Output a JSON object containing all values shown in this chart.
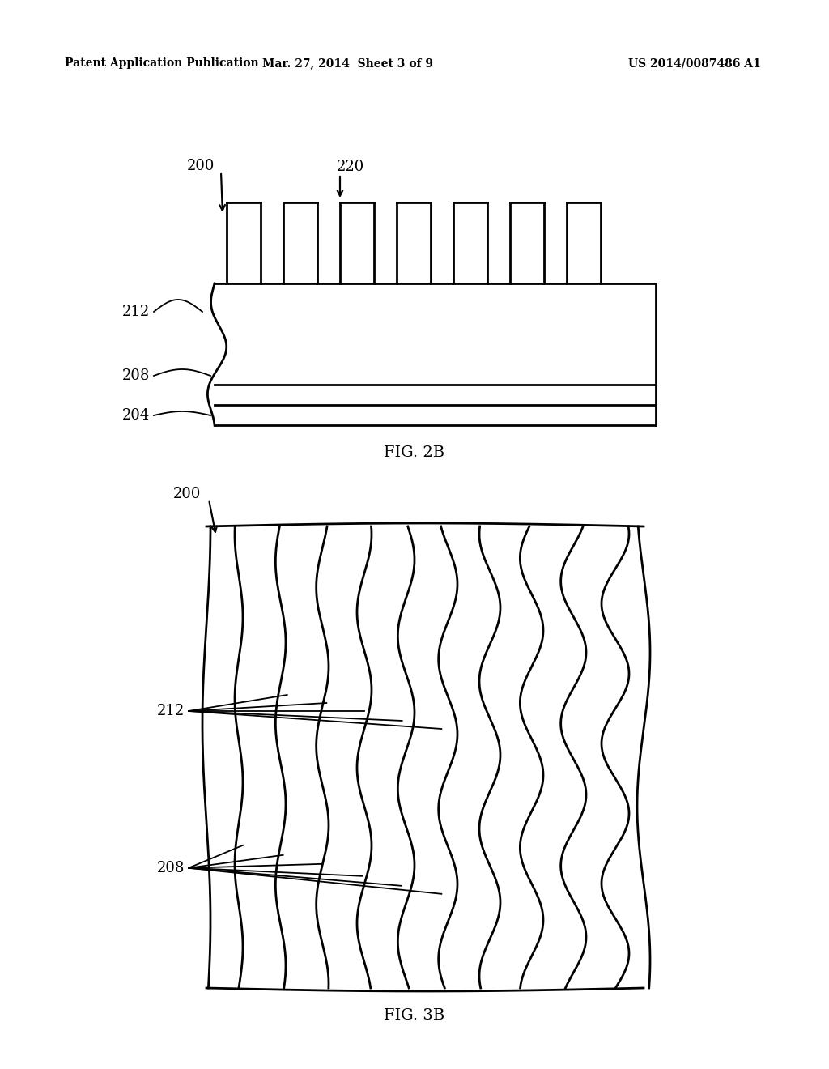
{
  "header_left": "Patent Application Publication",
  "header_center": "Mar. 27, 2014  Sheet 3 of 9",
  "header_right": "US 2014/0087486 A1",
  "fig2b_label": "FIG. 2B",
  "fig3b_label": "FIG. 3B",
  "label_200_a": "200",
  "label_220": "220",
  "label_212_a": "212",
  "label_208_a": "208",
  "label_204": "204",
  "label_200_b": "200",
  "label_212_b": "212",
  "label_208_b": "208",
  "line_color": "#000000",
  "bg_color": "#ffffff"
}
